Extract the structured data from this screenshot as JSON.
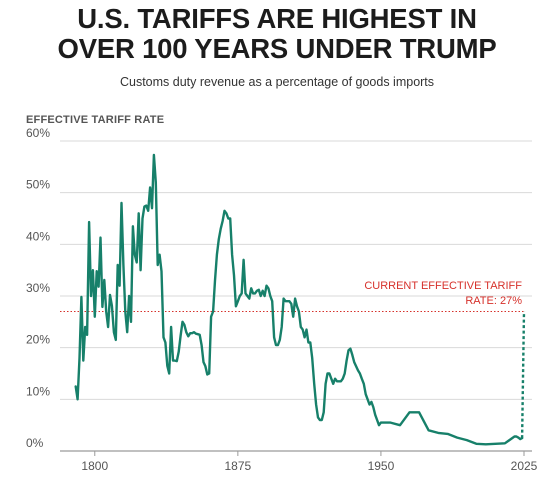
{
  "header": {
    "title_line1": "U.S. TARIFFS ARE HIGHEST IN",
    "title_line2": "OVER 100 YEARS UNDER TRUMP",
    "subtitle": "Customs duty revenue as a percentage of goods imports"
  },
  "chart_data": {
    "type": "line",
    "title": "U.S. TARIFFS ARE HIGHEST IN OVER 100 YEARS UNDER TRUMP",
    "subtitle": "Customs duty revenue as a percentage of goods imports",
    "ylabel": "EFFECTIVE TARIFF RATE",
    "xlabel": "",
    "xlim": [
      1790,
      2025
    ],
    "ylim": [
      0,
      60
    ],
    "y_ticks": [
      0,
      10,
      20,
      30,
      40,
      50,
      60
    ],
    "y_tick_labels": [
      "0%",
      "10%",
      "20%",
      "30%",
      "40%",
      "50%",
      "60%"
    ],
    "x_ticks": [
      1800,
      1875,
      1950,
      2025
    ],
    "x_tick_labels": [
      "1800",
      "1875",
      "1950",
      "2025"
    ],
    "grid": "horizontal",
    "colors": {
      "line": "#17806a",
      "annotation": "#d6312b",
      "grid": "#d9d9d9"
    },
    "series": [
      {
        "name": "",
        "x": [
          1790,
          1791,
          1792,
          1793,
          1794,
          1795,
          1796,
          1797,
          1798,
          1799,
          1800,
          1801,
          1802,
          1803,
          1804,
          1805,
          1806,
          1807,
          1808,
          1809,
          1810,
          1811,
          1812,
          1813,
          1814,
          1815,
          1816,
          1817,
          1818,
          1819,
          1820,
          1821,
          1822,
          1823,
          1824,
          1825,
          1826,
          1827,
          1828,
          1829,
          1830,
          1831,
          1832,
          1833,
          1834,
          1835,
          1836,
          1837,
          1838,
          1839,
          1840,
          1841,
          1842,
          1843,
          1844,
          1845,
          1846,
          1847,
          1848,
          1849,
          1850,
          1851,
          1852,
          1853,
          1854,
          1855,
          1856,
          1857,
          1858,
          1859,
          1860,
          1861,
          1862,
          1863,
          1864,
          1865,
          1866,
          1867,
          1868,
          1869,
          1870,
          1871,
          1872,
          1873,
          1874,
          1875,
          1876,
          1877,
          1878,
          1879,
          1880,
          1881,
          1882,
          1883,
          1884,
          1885,
          1886,
          1887,
          1888,
          1889,
          1890,
          1891,
          1892,
          1893,
          1894,
          1895,
          1896,
          1897,
          1898,
          1899,
          1900,
          1901,
          1902,
          1903,
          1904,
          1905,
          1906,
          1907,
          1908,
          1909,
          1910,
          1911,
          1912,
          1913,
          1914,
          1915,
          1916,
          1917,
          1918,
          1919,
          1920,
          1921,
          1922,
          1923,
          1924,
          1925,
          1926,
          1927,
          1928,
          1929,
          1930,
          1931,
          1932,
          1933,
          1934,
          1935,
          1936,
          1937,
          1938,
          1939,
          1940,
          1941,
          1942,
          1943,
          1944,
          1945,
          1946,
          1947,
          1948,
          1949,
          1950,
          1955,
          1960,
          1965,
          1970,
          1975,
          1980,
          1985,
          1990,
          1995,
          2000,
          2005,
          2010,
          2015,
          2020,
          2021,
          2022,
          2023,
          2024,
          2025
        ],
        "values": [
          12.5,
          10.0,
          18.0,
          29.8,
          17.5,
          24.0,
          22.5,
          44.3,
          30.0,
          35.0,
          26.0,
          34.8,
          31.8,
          41.3,
          27.9,
          33.1,
          27.0,
          24.0,
          30.2,
          28.1,
          23.0,
          21.5,
          36.0,
          32.0,
          48.0,
          36.0,
          27.0,
          23.0,
          30.0,
          25.0,
          43.5,
          38.0,
          36.5,
          46.0,
          35.0,
          45.0,
          47.3,
          47.5,
          46.5,
          51.0,
          47.0,
          57.3,
          52.0,
          36.0,
          38.0,
          34.8,
          22.0,
          21.0,
          16.5,
          15.0,
          24.0,
          17.5,
          17.5,
          17.4,
          19.2,
          22.3,
          25.0,
          24.4,
          23.0,
          22.2,
          22.8,
          22.8,
          23.0,
          22.7,
          22.6,
          22.5,
          20.5,
          17.2,
          16.4,
          14.8,
          15.0,
          26.0,
          27.0,
          33.0,
          38.0,
          41.0,
          43.0,
          44.5,
          46.5,
          46.0,
          45.0,
          45.0,
          38.0,
          34.0,
          28.0,
          29.0,
          30.0,
          30.5,
          37.0,
          30.5,
          30.0,
          29.5,
          31.5,
          30.5,
          30.5,
          31.0,
          31.2,
          30.0,
          31.0,
          30.0,
          32.0,
          31.5,
          30.0,
          29.0,
          22.0,
          20.5,
          20.5,
          21.5,
          24.0,
          29.5,
          29.0,
          29.0,
          29.0,
          28.5,
          26.0,
          29.5,
          28.0,
          27.0,
          24.0,
          23.5,
          22.0,
          23.5,
          21.0,
          21.0,
          18.0,
          13.0,
          9.0,
          6.5,
          6.0,
          6.0,
          7.5,
          13.0,
          15.0,
          15.0,
          14.0,
          13.0,
          14.0,
          13.5,
          13.5,
          13.5,
          14.0,
          15.0,
          17.5,
          19.5,
          19.8,
          18.6,
          17.2,
          16.4,
          15.6,
          15.0,
          14.0,
          13.0,
          11.0,
          10.0,
          9.0,
          9.5,
          8.5,
          7.0,
          6.0,
          5.0,
          5.5,
          5.5,
          5.0,
          7.5,
          7.5,
          4.0,
          3.5,
          3.3,
          2.6,
          2.1,
          1.4,
          1.3,
          1.4,
          1.5,
          2.8,
          2.8,
          2.6,
          2.3,
          2.5,
          27.0
        ]
      }
    ],
    "reference_line": {
      "value": 27,
      "label_line1": "CURRENT EFFECTIVE TARIFF",
      "label_line2": "RATE: 27%"
    }
  }
}
